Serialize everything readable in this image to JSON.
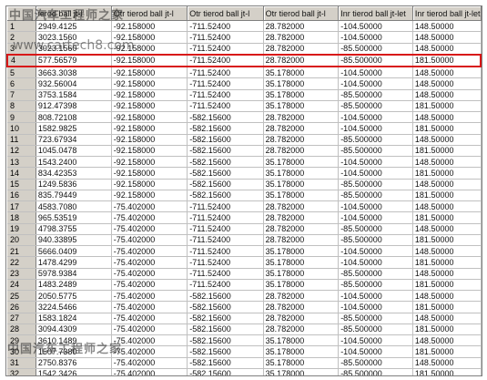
{
  "columns": [
    "",
    "",
    "Otr tierod ball jt-l",
    "Otr tierod ball jt-l",
    "Otr tierod ball jt-l",
    "Inr tierod ball jt-let",
    "Inr tierod ball jt-let"
  ],
  "header_partial_col1": "ierod ball jt-l",
  "selected_row": 4,
  "rows": [
    [
      "1",
      "2949.4125",
      "-92.158000",
      "-711.52400",
      "28.782000",
      "-104.50000",
      "148.50000"
    ],
    [
      "2",
      "3023.1560",
      "-92.158000",
      "-711.52400",
      "28.782000",
      "-104.50000",
      "148.50000"
    ],
    [
      "3",
      "3023.1560",
      "-92.158000",
      "-711.52400",
      "28.782000",
      "-85.500000",
      "148.50000"
    ],
    [
      "4",
      "577.56579",
      "-92.158000",
      "-711.52400",
      "28.782000",
      "-85.500000",
      "181.50000"
    ],
    [
      "5",
      "3663.3038",
      "-92.158000",
      "-711.52400",
      "35.178000",
      "-104.50000",
      "148.50000"
    ],
    [
      "6",
      "932.56004",
      "-92.158000",
      "-711.52400",
      "35.178000",
      "-104.50000",
      "148.50000"
    ],
    [
      "7",
      "3753.1584",
      "-92.158000",
      "-711.52400",
      "35.178000",
      "-85.500000",
      "148.50000"
    ],
    [
      "8",
      "912.47398",
      "-92.158000",
      "-711.52400",
      "35.178000",
      "-85.500000",
      "181.50000"
    ],
    [
      "9",
      "808.72108",
      "-92.158000",
      "-582.15600",
      "28.782000",
      "-104.50000",
      "148.50000"
    ],
    [
      "10",
      "1582.9825",
      "-92.158000",
      "-582.15600",
      "28.782000",
      "-104.50000",
      "181.50000"
    ],
    [
      "11",
      "723.67934",
      "-92.158000",
      "-582.15600",
      "28.782000",
      "-85.500000",
      "148.50000"
    ],
    [
      "12",
      "1045.0478",
      "-92.158000",
      "-582.15600",
      "28.782000",
      "-85.500000",
      "181.50000"
    ],
    [
      "13",
      "1543.2400",
      "-92.158000",
      "-582.15600",
      "35.178000",
      "-104.50000",
      "148.50000"
    ],
    [
      "14",
      "834.42353",
      "-92.158000",
      "-582.15600",
      "35.178000",
      "-104.50000",
      "181.50000"
    ],
    [
      "15",
      "1249.5836",
      "-92.158000",
      "-582.15600",
      "35.178000",
      "-85.500000",
      "148.50000"
    ],
    [
      "16",
      "835.79449",
      "-92.158000",
      "-582.15600",
      "35.178000",
      "-85.500000",
      "181.50000"
    ],
    [
      "17",
      "4583.7080",
      "-75.402000",
      "-711.52400",
      "28.782000",
      "-104.50000",
      "148.50000"
    ],
    [
      "18",
      "965.53519",
      "-75.402000",
      "-711.52400",
      "28.782000",
      "-104.50000",
      "181.50000"
    ],
    [
      "19",
      "4798.3755",
      "-75.402000",
      "-711.52400",
      "28.782000",
      "-85.500000",
      "148.50000"
    ],
    [
      "20",
      "940.33895",
      "-75.402000",
      "-711.52400",
      "28.782000",
      "-85.500000",
      "181.50000"
    ],
    [
      "21",
      "5666.0409",
      "-75.402000",
      "-711.52400",
      "35.178000",
      "-104.50000",
      "148.50000"
    ],
    [
      "22",
      "1478.4299",
      "-75.402000",
      "-711.52400",
      "35.178000",
      "-104.50000",
      "181.50000"
    ],
    [
      "23",
      "5978.9384",
      "-75.402000",
      "-711.52400",
      "35.178000",
      "-85.500000",
      "148.50000"
    ],
    [
      "24",
      "1483.2489",
      "-75.402000",
      "-711.52400",
      "35.178000",
      "-85.500000",
      "181.50000"
    ],
    [
      "25",
      "2050.5775",
      "-75.402000",
      "-582.15600",
      "28.782000",
      "-104.50000",
      "148.50000"
    ],
    [
      "26",
      "3224.5466",
      "-75.402000",
      "-582.15600",
      "28.782000",
      "-104.50000",
      "181.50000"
    ],
    [
      "27",
      "1583.1824",
      "-75.402000",
      "-582.15600",
      "28.782000",
      "-85.500000",
      "148.50000"
    ],
    [
      "28",
      "3094.4309",
      "-75.402000",
      "-582.15600",
      "28.782000",
      "-85.500000",
      "181.50000"
    ],
    [
      "29",
      "3610.1489",
      "-75.402000",
      "-582.15600",
      "35.178000",
      "-104.50000",
      "148.50000"
    ],
    [
      "30",
      "1507.7380",
      "-75.402000",
      "-582.15600",
      "35.178000",
      "-104.50000",
      "181.50000"
    ],
    [
      "31",
      "2750.8376",
      "-75.402000",
      "-582.15600",
      "35.178000",
      "-85.500000",
      "148.50000"
    ],
    [
      "32",
      "1542.3426",
      "-75.402000",
      "-582.15600",
      "35.178000",
      "-85.500000",
      "181.50000"
    ]
  ],
  "watermark": {
    "title": "中国汽车工程师之家",
    "url": "www.cartech8.com"
  },
  "colors": {
    "header_bg": "#d4d0c8",
    "selection_border": "#d81818",
    "grid_line": "#c0c0c0"
  }
}
